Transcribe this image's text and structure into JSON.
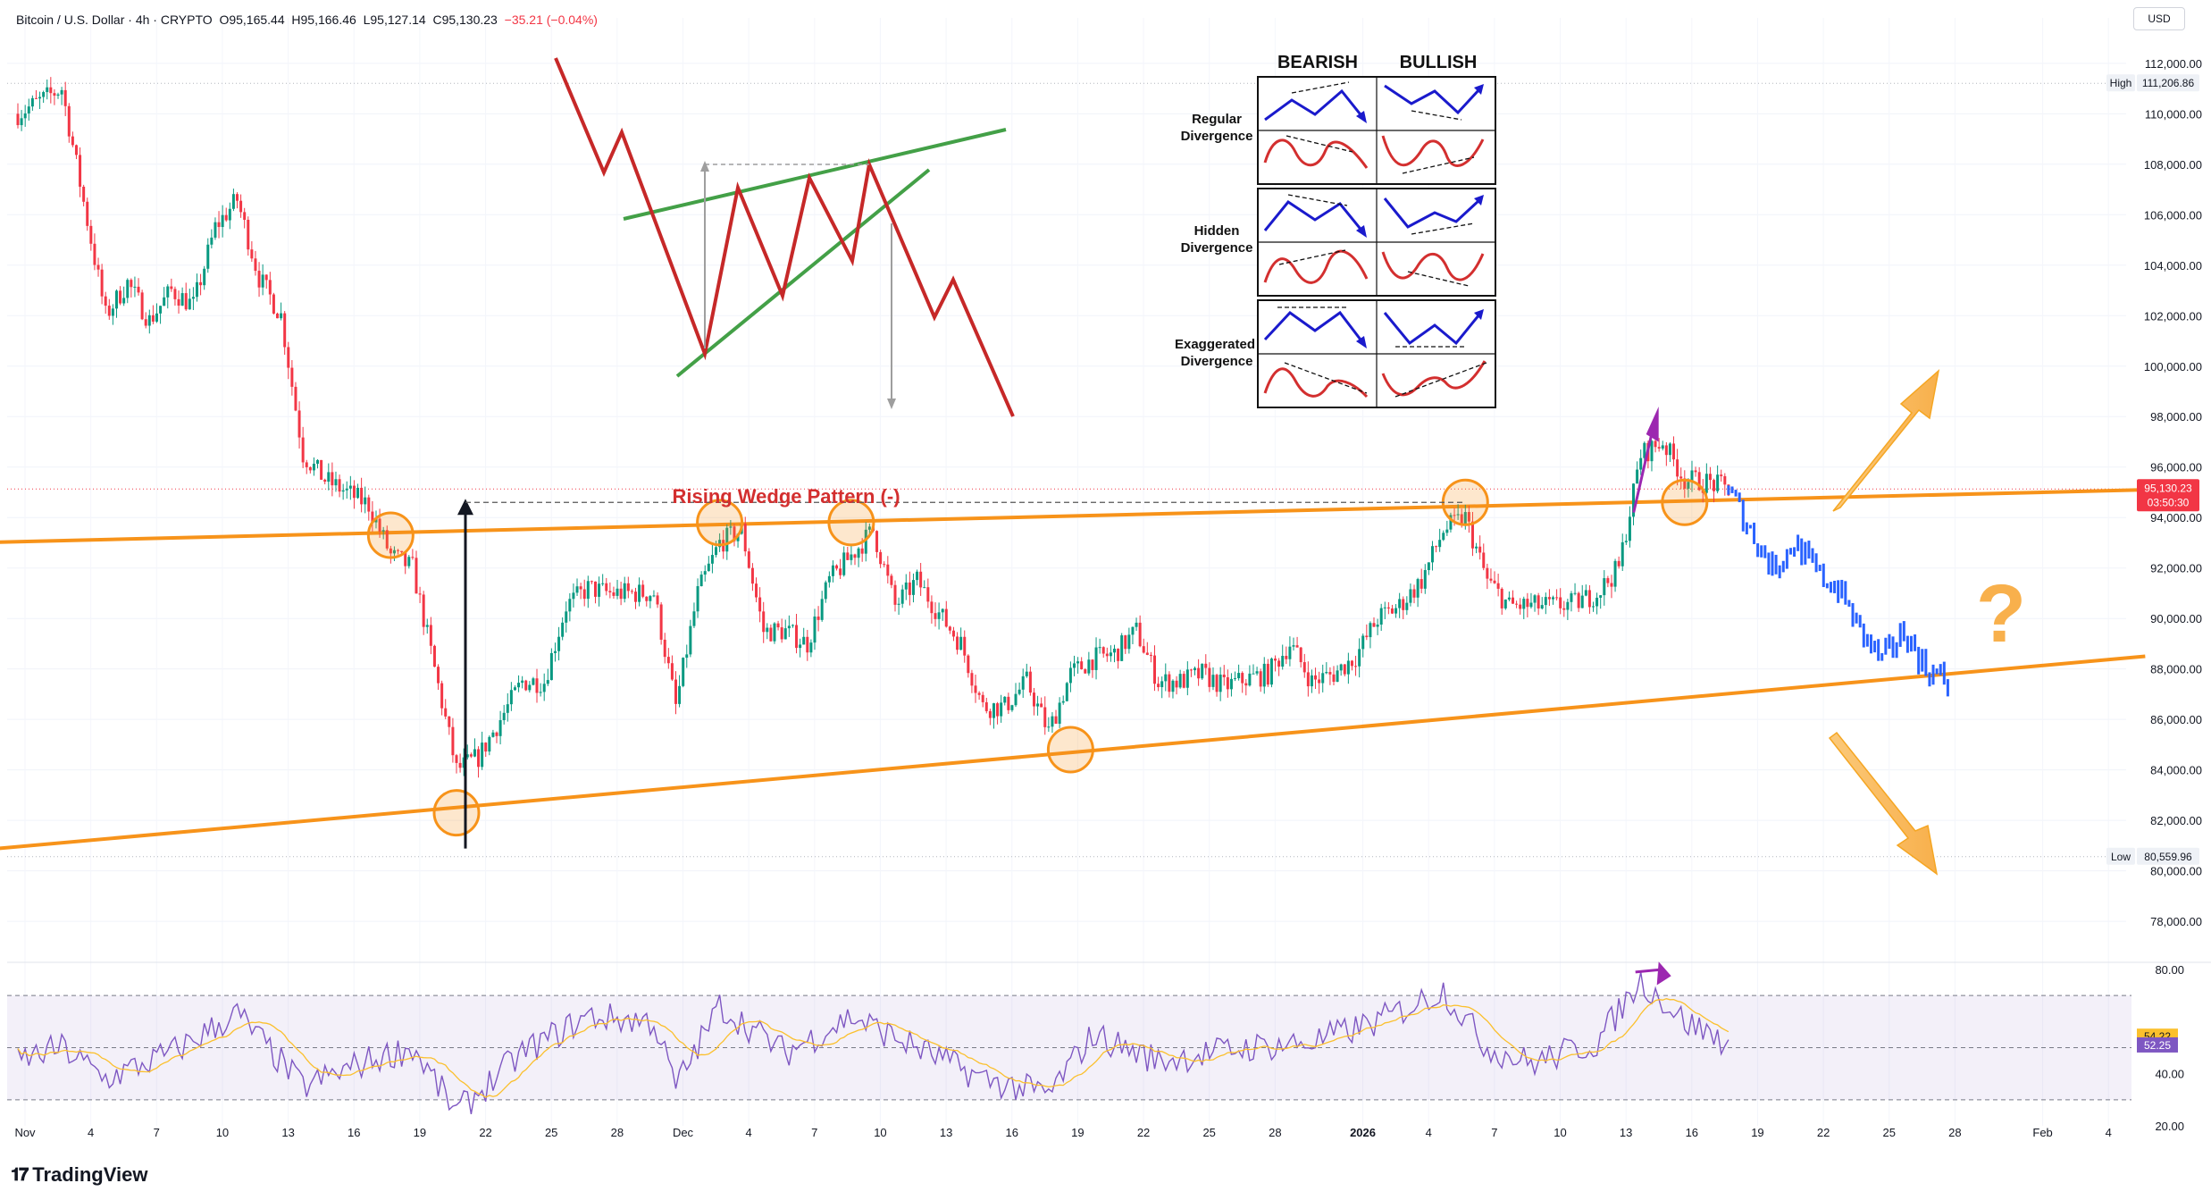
{
  "header": {
    "symbol": "Bitcoin / U.S. Dollar · 4h · CRYPTO",
    "open": "O95,165.44",
    "high": "H95,166.46",
    "low": "L95,127.14",
    "close": "C95,130.23",
    "change": "−35.21 (−0.04%)"
  },
  "currency": "USD",
  "brand": "TradingView",
  "colors": {
    "up": "#089981",
    "down": "#f23645",
    "projection": "#2962ff",
    "wedge": "#f7931a",
    "rsi": "#7e57c2",
    "rsi_ma": "#fbc02d",
    "annotation_title": "#d32f2f",
    "divergence_arrow": "#9c27b0"
  },
  "annotations": {
    "pattern_title": "Rising Wedge Pattern (-)",
    "question_mark": "?",
    "legend": {
      "col_bearish": "BEARISH",
      "col_bullish": "BULLISH",
      "row_regular": [
        "Regular",
        "Divergence"
      ],
      "row_hidden": [
        "Hidden",
        "Divergence"
      ],
      "row_exaggerated": [
        "Exaggerated",
        "Divergence"
      ]
    }
  },
  "chart_data": [
    {
      "type": "candlestick",
      "title": "Bitcoin / U.S. Dollar · 4h · CRYPTO",
      "ylim": [
        76800,
        113800
      ],
      "y_ticks": [
        "78,000.00",
        "80,000.00",
        "82,000.00",
        "84,000.00",
        "86,000.00",
        "88,000.00",
        "90,000.00",
        "92,000.00",
        "94,000.00",
        "96,000.00",
        "98,000.00",
        "100,000.00",
        "102,000.00",
        "104,000.00",
        "106,000.00",
        "108,000.00",
        "110,000.00",
        "112,000.00"
      ],
      "x_ticks": [
        "Nov",
        "4",
        "7",
        "10",
        "13",
        "16",
        "19",
        "22",
        "25",
        "28",
        "Dec",
        "4",
        "7",
        "10",
        "13",
        "16",
        "19",
        "22",
        "25",
        "28",
        "2026",
        "4",
        "7",
        "10",
        "13",
        "16",
        "19",
        "22",
        "25",
        "28",
        "Feb",
        "4"
      ],
      "high_label": "High",
      "high_value": "111,206.86",
      "low_label": "Low",
      "low_value": "80,559.96",
      "last_price": "95,130.23",
      "countdown": "03:50:30",
      "path_keypoints": [
        {
          "date": "Nov 1",
          "price": 110000
        },
        {
          "date": "Nov 3",
          "price": 111000
        },
        {
          "date": "Nov 4",
          "price": 106500
        },
        {
          "date": "Nov 5",
          "price": 102000
        },
        {
          "date": "Nov 6",
          "price": 103300
        },
        {
          "date": "Nov 7",
          "price": 101800
        },
        {
          "date": "Nov 8",
          "price": 103000
        },
        {
          "date": "Nov 9",
          "price": 102400
        },
        {
          "date": "Nov 10",
          "price": 105500
        },
        {
          "date": "Nov 11",
          "price": 106600
        },
        {
          "date": "Nov 12",
          "price": 103500
        },
        {
          "date": "Nov 13",
          "price": 102000
        },
        {
          "date": "Nov 14",
          "price": 96500
        },
        {
          "date": "Nov 15",
          "price": 95500
        },
        {
          "date": "Nov 16",
          "price": 95000
        },
        {
          "date": "Nov 17",
          "price": 94500
        },
        {
          "date": "Nov 18",
          "price": 92500
        },
        {
          "date": "Nov 19",
          "price": 92000
        },
        {
          "date": "Nov 20",
          "price": 88000
        },
        {
          "date": "Nov 21",
          "price": 84000
        },
        {
          "date": "Nov 22",
          "price": 84500
        },
        {
          "date": "Nov 23",
          "price": 86000
        },
        {
          "date": "Nov 24",
          "price": 87500
        },
        {
          "date": "Nov 25",
          "price": 87500
        },
        {
          "date": "Nov 26",
          "price": 90500
        },
        {
          "date": "Nov 27",
          "price": 91200
        },
        {
          "date": "Nov 28",
          "price": 91000
        },
        {
          "date": "Nov 30",
          "price": 91000
        },
        {
          "date": "Dec 1",
          "price": 86500
        },
        {
          "date": "Dec 2",
          "price": 91000
        },
        {
          "date": "Dec 3",
          "price": 93000
        },
        {
          "date": "Dec 4",
          "price": 93500
        },
        {
          "date": "Dec 5",
          "price": 89500
        },
        {
          "date": "Dec 6",
          "price": 89500
        },
        {
          "date": "Dec 7",
          "price": 89000
        },
        {
          "date": "Dec 8",
          "price": 91500
        },
        {
          "date": "Dec 9",
          "price": 92500
        },
        {
          "date": "Dec 10",
          "price": 93500
        },
        {
          "date": "Dec 11",
          "price": 90500
        },
        {
          "date": "Dec 12",
          "price": 91500
        },
        {
          "date": "Dec 13",
          "price": 90200
        },
        {
          "date": "Dec 14",
          "price": 89000
        },
        {
          "date": "Dec 15",
          "price": 86500
        },
        {
          "date": "Dec 16",
          "price": 86500
        },
        {
          "date": "Dec 17",
          "price": 87500
        },
        {
          "date": "Dec 18",
          "price": 85500
        },
        {
          "date": "Dec 19",
          "price": 87800
        },
        {
          "date": "Dec 20",
          "price": 88400
        },
        {
          "date": "Dec 21",
          "price": 88600
        },
        {
          "date": "Dec 22",
          "price": 89500
        },
        {
          "date": "Dec 23",
          "price": 87500
        },
        {
          "date": "Dec 24",
          "price": 87500
        },
        {
          "date": "Dec 25",
          "price": 87800
        },
        {
          "date": "Dec 26",
          "price": 87300
        },
        {
          "date": "Dec 27",
          "price": 87600
        },
        {
          "date": "Dec 28",
          "price": 87800
        },
        {
          "date": "Dec 29",
          "price": 89000
        },
        {
          "date": "Dec 30",
          "price": 87500
        },
        {
          "date": "Dec 31",
          "price": 87800
        },
        {
          "date": "Jan 1",
          "price": 88500
        },
        {
          "date": "Jan 2",
          "price": 90000
        },
        {
          "date": "Jan 3",
          "price": 90500
        },
        {
          "date": "Jan 4",
          "price": 91500
        },
        {
          "date": "Jan 5",
          "price": 93500
        },
        {
          "date": "Jan 6",
          "price": 94000
        },
        {
          "date": "Jan 7",
          "price": 91500
        },
        {
          "date": "Jan 8",
          "price": 90500
        },
        {
          "date": "Jan 9",
          "price": 90500
        },
        {
          "date": "Jan 10",
          "price": 90500
        },
        {
          "date": "Jan 11",
          "price": 90600
        },
        {
          "date": "Jan 12",
          "price": 91000
        },
        {
          "date": "Jan 13",
          "price": 92000
        },
        {
          "date": "Jan 14",
          "price": 96500
        },
        {
          "date": "Jan 15",
          "price": 97000
        },
        {
          "date": "Jan 16",
          "price": 95500
        },
        {
          "date": "Jan 17",
          "price": 95400
        },
        {
          "date": "Jan 18",
          "price": 95130
        }
      ],
      "projection_keypoints": [
        {
          "date": "Jan 18",
          "price": 95100
        },
        {
          "date": "Jan 19",
          "price": 93500
        },
        {
          "date": "Jan 20",
          "price": 92000
        },
        {
          "date": "Jan 21",
          "price": 93000
        },
        {
          "date": "Jan 22",
          "price": 91800
        },
        {
          "date": "Jan 23",
          "price": 91200
        },
        {
          "date": "Jan 24",
          "price": 89500
        },
        {
          "date": "Jan 25",
          "price": 88300
        },
        {
          "date": "Jan 26",
          "price": 89500
        },
        {
          "date": "Jan 27",
          "price": 88000
        },
        {
          "date": "Jan 28",
          "price": 87500
        }
      ],
      "wedge_upper": [
        {
          "date": "Oct 30",
          "price": 93000
        },
        {
          "date": "Feb 6",
          "price": 95100
        }
      ],
      "wedge_lower": [
        {
          "date": "Oct 30",
          "price": 80800
        },
        {
          "date": "Feb 6",
          "price": 88500
        }
      ],
      "touch_points": [
        {
          "date": "Nov 18",
          "price": 93300
        },
        {
          "date": "Nov 21",
          "price": 82300
        },
        {
          "date": "Dec 3",
          "price": 93800
        },
        {
          "date": "Dec 9",
          "price": 93800
        },
        {
          "date": "Dec 19",
          "price": 84800
        },
        {
          "date": "Jan 6",
          "price": 94600
        },
        {
          "date": "Jan 16",
          "price": 94600
        }
      ],
      "measured_move": {
        "date": "Nov 21",
        "from": 82300,
        "to": 94600
      }
    },
    {
      "type": "line",
      "title": "RSI",
      "ylim": [
        20,
        80
      ],
      "y_ticks": [
        "20.00",
        "40.00",
        "80.00"
      ],
      "bands": {
        "upper": 70,
        "middle": 50,
        "lower": 30
      },
      "rsi_value": "52.25",
      "ma_value": "54.22",
      "keypoints": [
        {
          "date": "Nov 1",
          "value": 45
        },
        {
          "date": "Nov 3",
          "value": 50
        },
        {
          "date": "Nov 5",
          "value": 38
        },
        {
          "date": "Nov 8",
          "value": 48
        },
        {
          "date": "Nov 11",
          "value": 63
        },
        {
          "date": "Nov 14",
          "value": 35
        },
        {
          "date": "Nov 17",
          "value": 45
        },
        {
          "date": "Nov 19",
          "value": 50
        },
        {
          "date": "Nov 21",
          "value": 25
        },
        {
          "date": "Nov 24",
          "value": 48
        },
        {
          "date": "Nov 27",
          "value": 62
        },
        {
          "date": "Nov 30",
          "value": 60
        },
        {
          "date": "Dec 1",
          "value": 35
        },
        {
          "date": "Dec 3",
          "value": 66
        },
        {
          "date": "Dec 6",
          "value": 48
        },
        {
          "date": "Dec 9",
          "value": 62
        },
        {
          "date": "Dec 12",
          "value": 50
        },
        {
          "date": "Dec 15",
          "value": 38
        },
        {
          "date": "Dec 18",
          "value": 32
        },
        {
          "date": "Dec 20",
          "value": 55
        },
        {
          "date": "Dec 23",
          "value": 45
        },
        {
          "date": "Dec 27",
          "value": 50
        },
        {
          "date": "Dec 30",
          "value": 52
        },
        {
          "date": "Jan 2",
          "value": 60
        },
        {
          "date": "Jan 5",
          "value": 72
        },
        {
          "date": "Jan 7",
          "value": 50
        },
        {
          "date": "Jan 9",
          "value": 44
        },
        {
          "date": "Jan 12",
          "value": 52
        },
        {
          "date": "Jan 14",
          "value": 76
        },
        {
          "date": "Jan 16",
          "value": 60
        },
        {
          "date": "Jan 18",
          "value": 52
        }
      ]
    }
  ]
}
